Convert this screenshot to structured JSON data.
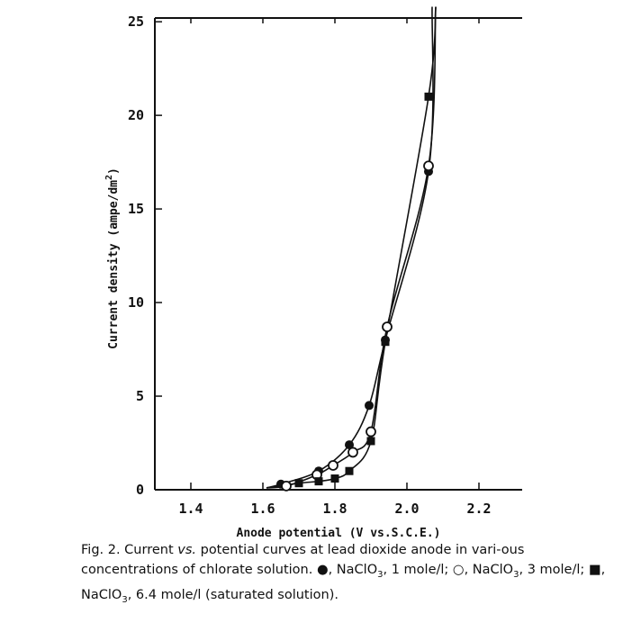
{
  "chart_data": {
    "type": "scatter",
    "title": "",
    "xlabel": "Anode potential (V vs.S.C.E.)",
    "ylabel": "Current density (ampe/dm",
    "ylabel_sup": "2",
    "ylabel_end": ")",
    "xlim": [
      1.3,
      2.32
    ],
    "ylim": [
      0,
      25.2
    ],
    "xticks": [
      1.4,
      1.6,
      1.8,
      2.0,
      2.2
    ],
    "xtick_labels": [
      "1.4",
      "1.6",
      "1.8",
      "2.0",
      "2.2"
    ],
    "yticks": [
      0,
      5,
      10,
      15,
      20,
      25
    ],
    "ytick_labels": [
      "0",
      "5",
      "10",
      "15",
      "20",
      "25"
    ],
    "series": [
      {
        "name": "NaClO3, 1 mole/l",
        "marker": "filled-circle",
        "x": [
          1.65,
          1.755,
          1.84,
          1.895,
          1.94,
          2.06
        ],
        "y": [
          0.3,
          1.0,
          2.4,
          4.5,
          8.0,
          17.0
        ],
        "curve_top": [
          2.07,
          25.8
        ]
      },
      {
        "name": "NaClO3, 3 mole/l",
        "marker": "open-circle",
        "x": [
          1.665,
          1.75,
          1.795,
          1.85,
          1.9,
          1.945,
          2.06
        ],
        "y": [
          0.2,
          0.8,
          1.3,
          2.0,
          3.1,
          8.7,
          17.3
        ],
        "curve_top": [
          2.08,
          25.8
        ]
      },
      {
        "name": "NaClO3, 6.4 mole/l (saturated solution)",
        "marker": "filled-square",
        "x": [
          1.7,
          1.755,
          1.8,
          1.84,
          1.9,
          1.94,
          2.06
        ],
        "y": [
          0.35,
          0.45,
          0.6,
          1.0,
          2.6,
          7.9,
          21.0
        ],
        "curve_top": [
          2.08,
          25.8
        ]
      }
    ],
    "curve_start": [
      1.61,
      0.1
    ]
  },
  "caption": {
    "p1": "Fig. 2. Current ",
    "vs": "vs.",
    "p2": " potential curves at lead dioxide anode in vari-ous concentrations of chlorate solution. ",
    "s1": "●",
    "t1": ", NaClO",
    "t1b": ", 1 mole/l; ",
    "s2": "○",
    "t2": ", NaClO",
    "t2b": ", 3 mole/l; ",
    "s3": "■",
    "t3": ", NaClO",
    "t3b": ", 6.4 mole/l (saturated solution).",
    "sub": "3"
  }
}
